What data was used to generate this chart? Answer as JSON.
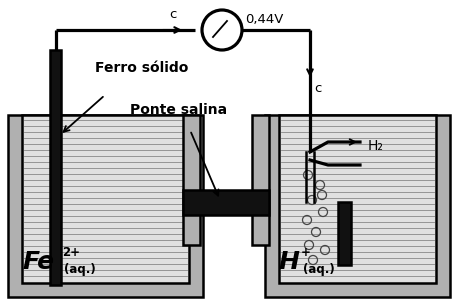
{
  "bg_color": "#ffffff",
  "line_color": "#000000",
  "voltmeter_label": "0,44V",
  "c_label_left": "c",
  "c_label_right": "c",
  "h2_label": "H₂",
  "ferro_label": "Ferro sólido",
  "ponte_label": "Ponte salina",
  "fe_label": "Fe",
  "fe_super": "2+",
  "fe_sub": "(aq.)",
  "h_label": "H",
  "h_super": "+",
  "h_sub": "(aq.)",
  "beaker_wall_color": "#b0b0b0",
  "beaker_inner_color": "#d8d8d8",
  "solution_color": "#e0e0e0",
  "line_color_solution": "#999999",
  "bridge_color": "#111111",
  "electrode_color": "#111111"
}
